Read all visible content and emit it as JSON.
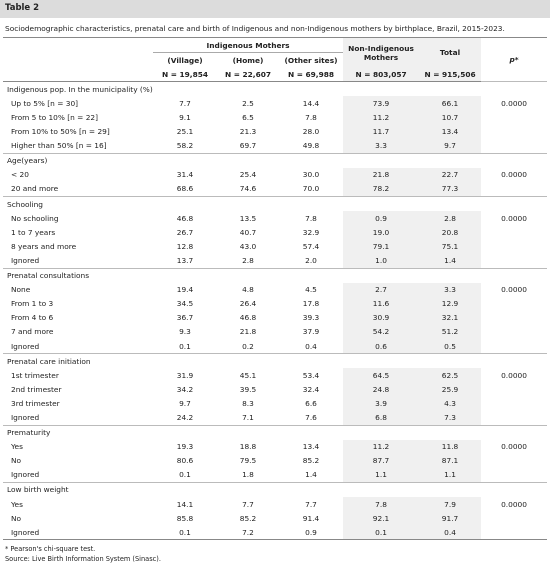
{
  "title": "Table 2",
  "caption": "Sociodemographic characteristics, prenatal care and birth of Indigenous and non-Indigenous mothers by birthplace, Brazil, 2015-2023.",
  "header": {
    "group": "Indigenous Mothers",
    "non_indigenous": "Non-Indigenous Mothers",
    "total": "Total",
    "p": "p*",
    "subheaders": [
      "(Village)",
      "(Home)",
      "(Other sites)"
    ],
    "n": [
      "N = 19,854",
      "N = 22,607",
      "N = 69,988",
      "N = 803,057",
      "N = 915,506"
    ]
  },
  "sections": [
    {
      "title": "Indigenous pop. In the municipality (%)",
      "rows": [
        {
          "label": "Up to 5% [n = 30]",
          "values": [
            "7.7",
            "2.5",
            "14.4",
            "73.9",
            "66.1"
          ],
          "p": "0.0000"
        },
        {
          "label": "From 5 to 10% [n = 22]",
          "values": [
            "9.1",
            "6.5",
            "7.8",
            "11.2",
            "10.7"
          ]
        },
        {
          "label": "From 10% to 50% [n = 29]",
          "values": [
            "25.1",
            "21.3",
            "28.0",
            "11.7",
            "13.4"
          ]
        },
        {
          "label": "Higher than 50% [n = 16]",
          "values": [
            "58.2",
            "69.7",
            "49.8",
            "3.3",
            "9.7"
          ]
        }
      ]
    },
    {
      "title": "Age(years)",
      "rows": [
        {
          "label": "< 20",
          "values": [
            "31.4",
            "25.4",
            "30.0",
            "21.8",
            "22.7"
          ],
          "p": "0.0000"
        },
        {
          "label": "20 and more",
          "values": [
            "68.6",
            "74.6",
            "70.0",
            "78.2",
            "77.3"
          ]
        }
      ]
    },
    {
      "title": "Schooling",
      "rows": [
        {
          "label": "No schooling",
          "values": [
            "46.8",
            "13.5",
            "7.8",
            "0.9",
            "2.8"
          ],
          "p": "0.0000"
        },
        {
          "label": "1 to 7 years",
          "values": [
            "26.7",
            "40.7",
            "32.9",
            "19.0",
            "20.8"
          ]
        },
        {
          "label": "8 years and more",
          "values": [
            "12.8",
            "43.0",
            "57.4",
            "79.1",
            "75.1"
          ]
        },
        {
          "label": "Ignored",
          "values": [
            "13.7",
            "2.8",
            "2.0",
            "1.0",
            "1.4"
          ]
        }
      ]
    },
    {
      "title": "Prenatal consultations",
      "rows": [
        {
          "label": "None",
          "values": [
            "19.4",
            "4.8",
            "4.5",
            "2.7",
            "3.3"
          ],
          "p": "0.0000"
        },
        {
          "label": "From 1 to 3",
          "values": [
            "34.5",
            "26.4",
            "17.8",
            "11.6",
            "12.9"
          ]
        },
        {
          "label": "From 4 to 6",
          "values": [
            "36.7",
            "46.8",
            "39.3",
            "30.9",
            "32.1"
          ]
        },
        {
          "label": "7 and more",
          "values": [
            "9.3",
            "21.8",
            "37.9",
            "54.2",
            "51.2"
          ]
        },
        {
          "label": "Ignored",
          "values": [
            "0.1",
            "0.2",
            "0.4",
            "0.6",
            "0.5"
          ]
        }
      ]
    },
    {
      "title": "Prenatal care initiation",
      "rows": [
        {
          "label": "1st trimester",
          "values": [
            "31.9",
            "45.1",
            "53.4",
            "64.5",
            "62.5"
          ],
          "p": "0.0000"
        },
        {
          "label": "2nd trimester",
          "values": [
            "34.2",
            "39.5",
            "32.4",
            "24.8",
            "25.9"
          ]
        },
        {
          "label": "3rd trimester",
          "values": [
            "9.7",
            "8.3",
            "6.6",
            "3.9",
            "4.3"
          ]
        },
        {
          "label": "Ignored",
          "values": [
            "24.2",
            "7.1",
            "7.6",
            "6.8",
            "7.3"
          ]
        }
      ]
    },
    {
      "title": "Prematurity",
      "rows": [
        {
          "label": "Yes",
          "values": [
            "19.3",
            "18.8",
            "13.4",
            "11.2",
            "11.8"
          ],
          "p": "0.0000"
        },
        {
          "label": "No",
          "values": [
            "80.6",
            "79.5",
            "85.2",
            "87.7",
            "87.1"
          ]
        },
        {
          "label": "Ignored",
          "values": [
            "0.1",
            "1.8",
            "1.4",
            "1.1",
            "1.1"
          ]
        }
      ]
    },
    {
      "title": "Low birth weight",
      "rows": [
        {
          "label": "Yes",
          "values": [
            "14.1",
            "7.7",
            "7.7",
            "7.8",
            "7.9"
          ],
          "p": "0.0000"
        },
        {
          "label": "No",
          "values": [
            "85.8",
            "85.2",
            "91.4",
            "92.1",
            "91.7"
          ]
        },
        {
          "label": "Ignored",
          "values": [
            "0.1",
            "7.2",
            "0.9",
            "0.1",
            "0.4"
          ]
        }
      ]
    }
  ],
  "footnotes": [
    "* Pearson's chi-square test.",
    "Source: Live Birth Information System (Sinasc)."
  ]
}
